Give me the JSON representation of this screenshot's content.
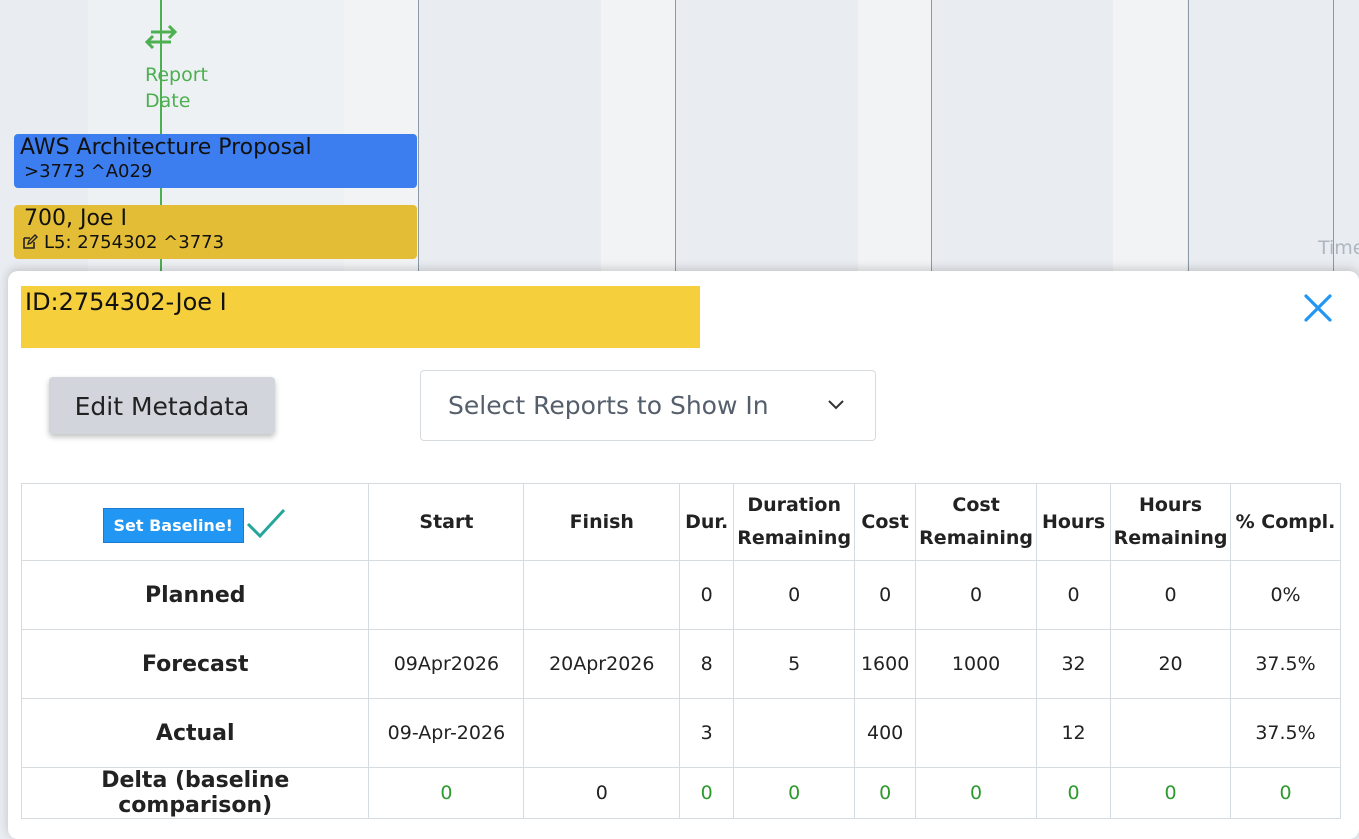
{
  "gantt": {
    "report_date_line1": "Report",
    "report_date_line2": "Date",
    "bar1": {
      "title": "AWS Architecture Proposal",
      "sub": ">3773 ^A029"
    },
    "bar2": {
      "title": "700, Joe I",
      "sub": "L5: 2754302 ^3773"
    },
    "side_text": "Time"
  },
  "modal": {
    "id_title": "ID:2754302-Joe I",
    "edit_metadata_label": "Edit Metadata",
    "select_reports_label": "Select Reports to Show In",
    "set_baseline_label": "Set Baseline!",
    "columns": [
      {
        "l1": "Start",
        "l2": ""
      },
      {
        "l1": "Finish",
        "l2": ""
      },
      {
        "l1": "Dur.",
        "l2": ""
      },
      {
        "l1": "Duration",
        "l2": "Remaining"
      },
      {
        "l1": "Cost",
        "l2": ""
      },
      {
        "l1": "Cost",
        "l2": "Remaining"
      },
      {
        "l1": "Hours",
        "l2": ""
      },
      {
        "l1": "Hours",
        "l2": "Remaining"
      },
      {
        "l1": "% Compl.",
        "l2": ""
      }
    ],
    "rows": [
      {
        "label": "Planned",
        "cells": [
          "",
          "",
          "0",
          "0",
          "0",
          "0",
          "0",
          "0",
          "0%"
        ]
      },
      {
        "label": "Forecast",
        "cells": [
          "09Apr2026",
          "20Apr2026",
          "8",
          "5",
          "1600",
          "1000",
          "32",
          "20",
          "37.5%"
        ]
      },
      {
        "label": "Actual",
        "cells": [
          "09-Apr-2026",
          "",
          "3",
          "",
          "400",
          "",
          "12",
          "",
          "37.5%"
        ]
      },
      {
        "label": "Delta (baseline comparison)",
        "cells": [
          "0",
          "0",
          "0",
          "0",
          "0",
          "0",
          "0",
          "0",
          "0"
        ]
      }
    ]
  },
  "colors": {
    "report_green": "#4caf50",
    "bar_blue": "#3c7ef0",
    "bar_yellow": "#e2bd35",
    "id_banner": "#f6cf3d",
    "close_blue": "#2196f3",
    "delta_green": "#2e9a2e"
  },
  "icons": [
    "swap-arrows-icon",
    "edit-icon",
    "close-icon",
    "chevron-down-icon",
    "checkmark-icon"
  ]
}
